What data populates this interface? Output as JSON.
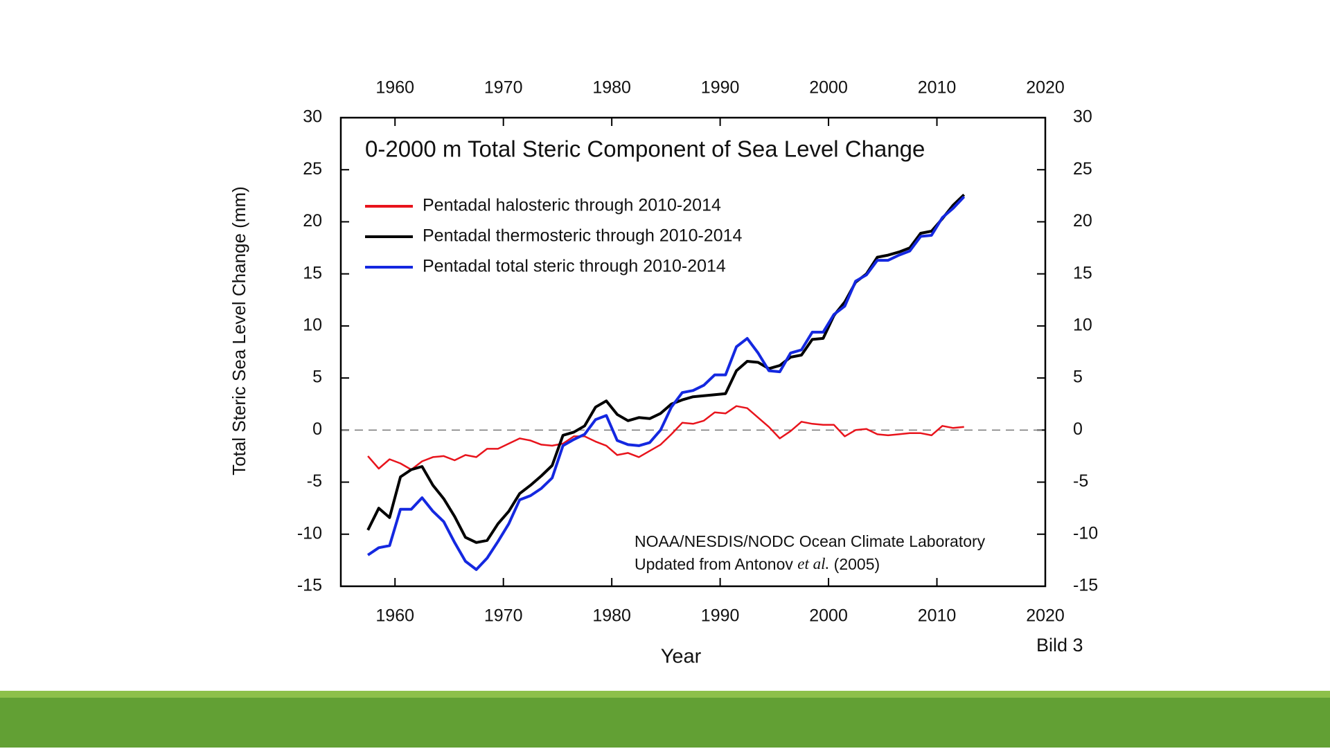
{
  "slide": {
    "caption": "Bild 3"
  },
  "chart_data": {
    "type": "line",
    "title": "0-2000 m Total Steric Component of Sea Level Change",
    "x_label": "Year",
    "y_label": "Total Steric Sea Level Change (mm)",
    "annotation": {
      "line1": "NOAA/NESDIS/NODC Ocean Climate Laboratory",
      "line2": [
        "Updated from Antonov ",
        "et al.",
        " (2005)"
      ]
    },
    "x": [
      1957.5,
      1958.5,
      1959.5,
      1960.5,
      1961.5,
      1962.5,
      1963.5,
      1964.5,
      1965.5,
      1966.5,
      1967.5,
      1968.5,
      1969.5,
      1970.5,
      1971.5,
      1972.5,
      1973.5,
      1974.5,
      1975.5,
      1976.5,
      1977.5,
      1978.5,
      1979.5,
      1980.5,
      1981.5,
      1982.5,
      1983.5,
      1984.5,
      1985.5,
      1986.5,
      1987.5,
      1988.5,
      1989.5,
      1990.5,
      1991.5,
      1992.5,
      1993.5,
      1994.5,
      1995.5,
      1996.5,
      1997.5,
      1998.5,
      1999.5,
      2000.5,
      2001.5,
      2002.5,
      2003.5,
      2004.5,
      2005.5,
      2006.5,
      2007.5,
      2008.5,
      2009.5,
      2010.5,
      2011.5,
      2012.5
    ],
    "series": [
      {
        "name": "Pentadal halosteric through 2010-2014",
        "color": "#e8141c",
        "values": [
          -2.5,
          -3.7,
          -2.8,
          -3.2,
          -3.8,
          -3.0,
          -2.6,
          -2.5,
          -2.9,
          -2.4,
          -2.6,
          -1.8,
          -1.8,
          -1.3,
          -0.8,
          -1.0,
          -1.4,
          -1.5,
          -1.3,
          -0.6,
          -0.6,
          -1.1,
          -1.5,
          -2.4,
          -2.2,
          -2.6,
          -2.0,
          -1.4,
          -0.4,
          0.7,
          0.6,
          0.9,
          1.7,
          1.6,
          2.3,
          2.1,
          1.2,
          0.3,
          -0.8,
          -0.1,
          0.8,
          0.6,
          0.5,
          0.5,
          -0.6,
          0.0,
          0.1,
          -0.4,
          -0.5,
          -0.4,
          -0.3,
          -0.3,
          -0.5,
          0.4,
          0.2,
          0.3
        ]
      },
      {
        "name": "Pentadal thermosteric through 2010-2014",
        "color": "#000000",
        "values": [
          -9.6,
          -7.5,
          -8.4,
          -4.5,
          -3.8,
          -3.5,
          -5.3,
          -6.6,
          -8.3,
          -10.3,
          -10.8,
          -10.6,
          -9.0,
          -7.8,
          -6.1,
          -5.3,
          -4.4,
          -3.4,
          -0.5,
          -0.2,
          0.4,
          2.2,
          2.8,
          1.5,
          0.9,
          1.2,
          1.1,
          1.6,
          2.5,
          2.9,
          3.2,
          3.3,
          3.4,
          3.5,
          5.7,
          6.6,
          6.5,
          5.9,
          6.2,
          7.0,
          7.2,
          8.7,
          8.8,
          11.0,
          12.3,
          14.2,
          15.0,
          16.6,
          16.8,
          17.1,
          17.5,
          18.9,
          19.1,
          20.3,
          21.6,
          22.6
        ]
      },
      {
        "name": "Pentadal total steric through 2010-2014",
        "color": "#1428e0",
        "values": [
          -12.0,
          -11.3,
          -11.1,
          -7.6,
          -7.6,
          -6.5,
          -7.8,
          -8.8,
          -10.8,
          -12.6,
          -13.4,
          -12.3,
          -10.7,
          -9.0,
          -6.7,
          -6.3,
          -5.6,
          -4.6,
          -1.5,
          -0.9,
          -0.4,
          1.0,
          1.4,
          -1.0,
          -1.4,
          -1.5,
          -1.2,
          0.0,
          2.2,
          3.6,
          3.8,
          4.3,
          5.3,
          5.3,
          8.0,
          8.8,
          7.4,
          5.7,
          5.6,
          7.4,
          7.7,
          9.4,
          9.4,
          11.1,
          11.9,
          14.3,
          14.9,
          16.3,
          16.3,
          16.8,
          17.2,
          18.6,
          18.7,
          20.4,
          21.3,
          22.4
        ]
      }
    ],
    "xlim": [
      1955,
      2020
    ],
    "xticks": [
      1960,
      1970,
      1980,
      1990,
      2000,
      2010,
      2020
    ],
    "ylim": [
      -15,
      30
    ],
    "yticks": [
      -15,
      -10,
      -5,
      0,
      5,
      10,
      15,
      20,
      25,
      30
    ],
    "zero_line": true
  }
}
